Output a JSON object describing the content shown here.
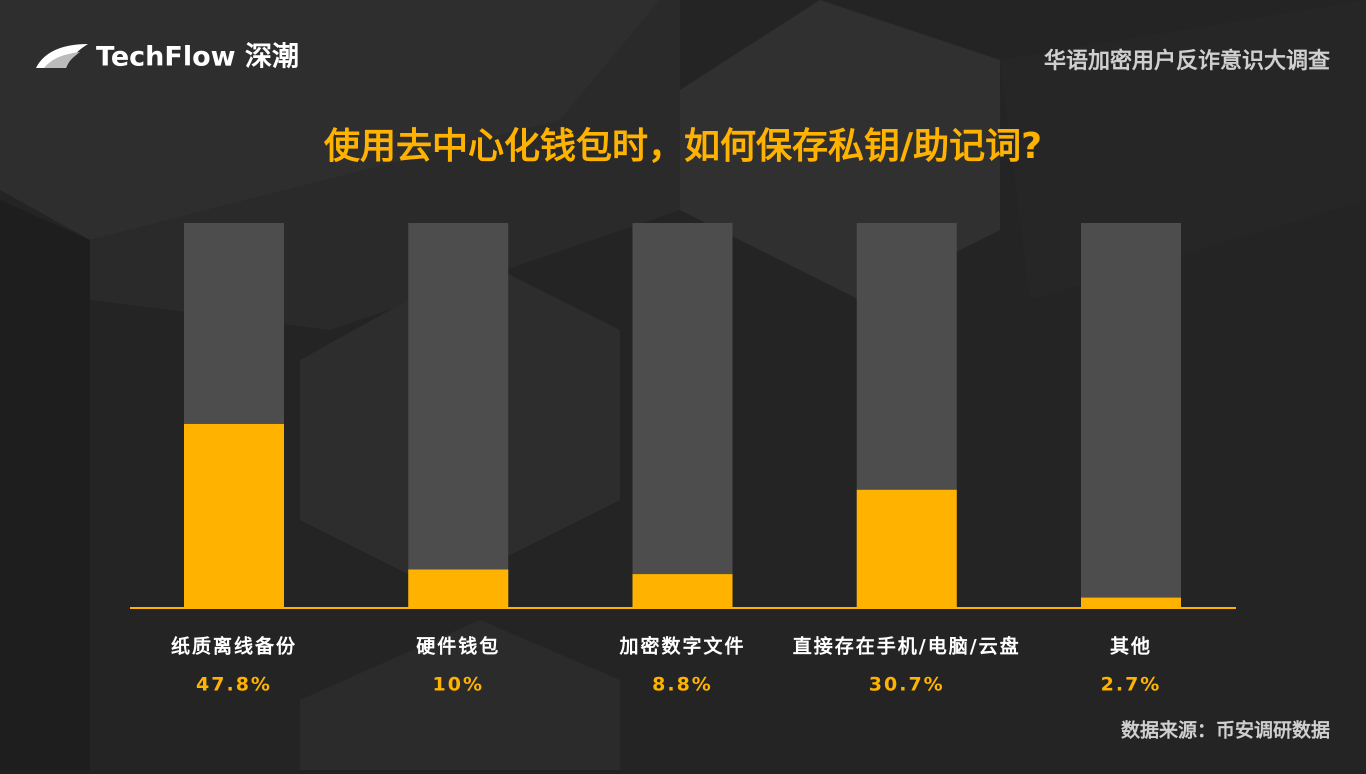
{
  "chart_data": {
    "type": "bar",
    "brand": "TechFlow 深潮",
    "subtitle": "华语加密用户反诈意识大调查",
    "title": "使用去中心化钱包时，如何保存私钥/助记词?",
    "categories": [
      "纸质离线备份",
      "硬件钱包",
      "加密数字文件",
      "直接存在手机/电脑/云盘",
      "其他"
    ],
    "values": [
      47.8,
      10,
      8.8,
      30.7,
      2.7
    ],
    "value_labels": [
      "47.8%",
      "10%",
      "8.8%",
      "30.7%",
      "2.7%"
    ],
    "color": "#ffb300",
    "ylim": [
      0,
      100
    ],
    "source": "数据来源：币安调研数据"
  }
}
